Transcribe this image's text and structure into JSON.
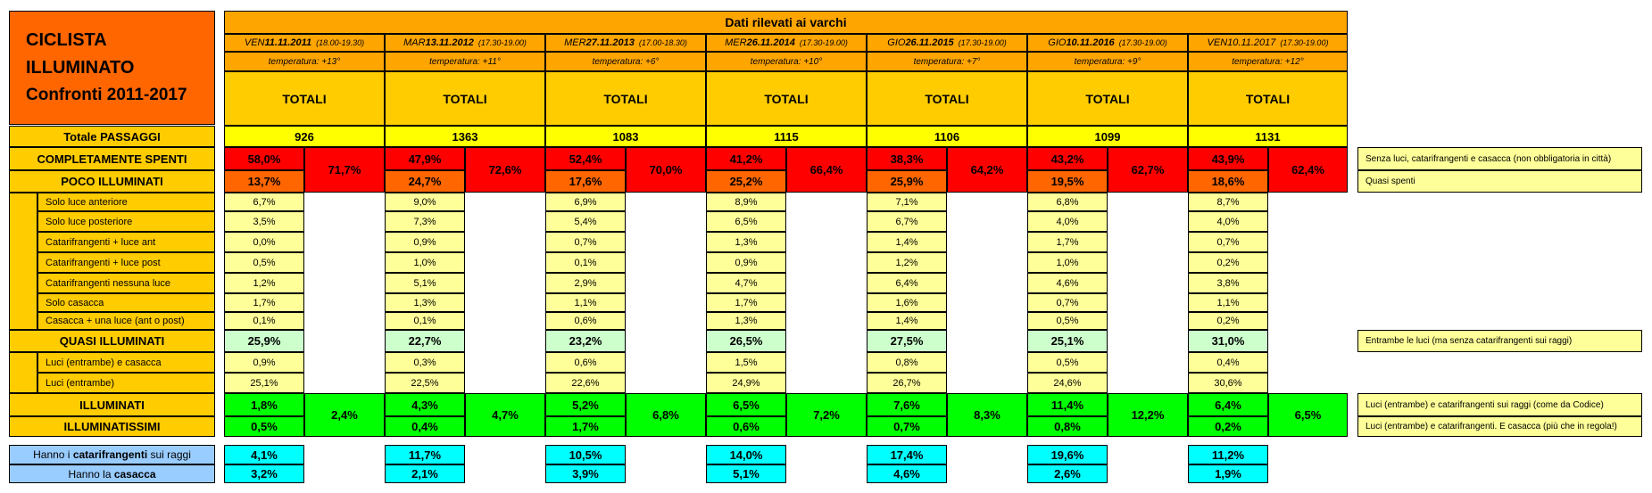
{
  "title": {
    "line1": "CICLISTA",
    "line2": "ILLUMINATO",
    "line3": "Confronti 2011-2017"
  },
  "header": {
    "banner": "Dati rilevati ai varchi",
    "totali_label": "TOTALI"
  },
  "dates": [
    {
      "day": "VEN",
      "date": "11.11.2011",
      "bold": true,
      "time": "(18.00-19.30)",
      "temp": "temperatura: +13°"
    },
    {
      "day": "MAR",
      "date": "13.11.2012",
      "bold": true,
      "time": "(17.30-19.00)",
      "temp": "temperatura: +11°"
    },
    {
      "day": "MER",
      "date": "27.11.2013",
      "bold": true,
      "time": "(17.00-18.30)",
      "temp": "temperatura: +6°"
    },
    {
      "day": "MER",
      "date": "26.11.2014",
      "bold": true,
      "time": "(17.30-19.00)",
      "temp": "temperatura: +10°"
    },
    {
      "day": "GIO",
      "date": "26.11.2015",
      "bold": true,
      "time": "(17.30-19.00)",
      "temp": "temperatura: +7°"
    },
    {
      "day": "GIO",
      "date": "10.11.2016",
      "bold": true,
      "time": "(17.30-19.00)",
      "temp": "temperatura: +9°"
    },
    {
      "day": "VEN",
      "date": "10.11.2017",
      "bold": false,
      "time": "(17.30-19.00)",
      "temp": "temperatura: +12°"
    }
  ],
  "labels": {
    "totale_passaggi": "Totale PASSAGGI",
    "completamente_spenti": "COMPLETAMENTE SPENTI",
    "poco_illuminati": "POCO ILLUMINATI",
    "quasi_illuminati": "QUASI ILLUMINATI",
    "illuminati": "ILLUMINATI",
    "illuminatissimi": "ILLUMINATISSIMI",
    "catarifrangenti_prefix": "Hanno i ",
    "catarifrangenti_bold": "catarifrangenti",
    "catarifrangenti_suffix": " sui raggi",
    "casacca_prefix": "Hanno la ",
    "casacca_bold": "casacca"
  },
  "poco_sub_labels": [
    "Solo luce anteriore",
    "Solo luce posteriore",
    "Catarifrangenti + luce ant",
    "Catarifrangenti + luce post",
    "Catarifrangenti nessuna luce",
    "Solo casacca",
    "Casacca + una luce (ant o post)"
  ],
  "quasi_sub_labels": [
    "Luci (entrambe) e casacca",
    "Luci (entrambe)"
  ],
  "notes": {
    "spenti": "Senza luci, catarifrangenti e casacca (non obbligatoria in città)",
    "poco": "Quasi spenti",
    "quasi": "Entrambe le luci (ma senza catarifrangenti sui raggi)",
    "illuminati": "Luci (entrambe) e catarifrangenti sui raggi (come da Codice)",
    "illuminatissimi": "Luci (entrambe) e catarifrangenti. E casacca (più che in regola!)"
  },
  "colors": {
    "orange": "#ffa500",
    "title_orange": "#ff6600",
    "yellow": "#ffcc00",
    "light_yellow": "#ffff99",
    "bright_yellow": "#ffff00",
    "red": "#ff0000",
    "dark_orange": "#ff6600",
    "light_green": "#ccffcc",
    "green": "#00ff00",
    "cyan": "#00ffff",
    "light_blue": "#99ccff"
  },
  "years": [
    {
      "totale": "926",
      "spenti": "58,0%",
      "poco": "13,7%",
      "spenti_poco": "71,7%",
      "poco_sub": [
        "6,7%",
        "3,5%",
        "0,0%",
        "0,5%",
        "1,2%",
        "1,7%",
        "0,1%"
      ],
      "quasi": "25,9%",
      "quasi_sub": [
        "0,9%",
        "25,1%"
      ],
      "illuminati": "1,8%",
      "illuminatissimi": "0,5%",
      "ill_sum": "2,4%",
      "catarifrangenti": "4,1%",
      "casacca": "3,2%"
    },
    {
      "totale": "1363",
      "spenti": "47,9%",
      "poco": "24,7%",
      "spenti_poco": "72,6%",
      "poco_sub": [
        "9,0%",
        "7,3%",
        "0,9%",
        "1,0%",
        "5,1%",
        "1,3%",
        "0,1%"
      ],
      "quasi": "22,7%",
      "quasi_sub": [
        "0,3%",
        "22,5%"
      ],
      "illuminati": "4,3%",
      "illuminatissimi": "0,4%",
      "ill_sum": "4,7%",
      "catarifrangenti": "11,7%",
      "casacca": "2,1%"
    },
    {
      "totale": "1083",
      "spenti": "52,4%",
      "poco": "17,6%",
      "spenti_poco": "70,0%",
      "poco_sub": [
        "6,9%",
        "5,4%",
        "0,7%",
        "0,1%",
        "2,9%",
        "1,1%",
        "0,6%"
      ],
      "quasi": "23,2%",
      "quasi_sub": [
        "0,6%",
        "22,6%"
      ],
      "illuminati": "5,2%",
      "illuminatissimi": "1,7%",
      "ill_sum": "6,8%",
      "catarifrangenti": "10,5%",
      "casacca": "3,9%"
    },
    {
      "totale": "1115",
      "spenti": "41,2%",
      "poco": "25,2%",
      "spenti_poco": "66,4%",
      "poco_sub": [
        "8,9%",
        "6,5%",
        "1,3%",
        "0,9%",
        "4,7%",
        "1,7%",
        "1,3%"
      ],
      "quasi": "26,5%",
      "quasi_sub": [
        "1,5%",
        "24,9%"
      ],
      "illuminati": "6,5%",
      "illuminatissimi": "0,6%",
      "ill_sum": "7,2%",
      "catarifrangenti": "14,0%",
      "casacca": "5,1%"
    },
    {
      "totale": "1106",
      "spenti": "38,3%",
      "poco": "25,9%",
      "spenti_poco": "64,2%",
      "poco_sub": [
        "7,1%",
        "6,7%",
        "1,4%",
        "1,2%",
        "6,4%",
        "1,6%",
        "1,4%"
      ],
      "quasi": "27,5%",
      "quasi_sub": [
        "0,8%",
        "26,7%"
      ],
      "illuminati": "7,6%",
      "illuminatissimi": "0,7%",
      "ill_sum": "8,3%",
      "catarifrangenti": "17,4%",
      "casacca": "4,6%"
    },
    {
      "totale": "1099",
      "spenti": "43,2%",
      "poco": "19,5%",
      "spenti_poco": "62,7%",
      "poco_sub": [
        "6,8%",
        "4,0%",
        "1,7%",
        "1,0%",
        "4,6%",
        "0,7%",
        "0,5%"
      ],
      "quasi": "25,1%",
      "quasi_sub": [
        "0,5%",
        "24,6%"
      ],
      "illuminati": "11,4%",
      "illuminatissimi": "0,8%",
      "ill_sum": "12,2%",
      "catarifrangenti": "19,6%",
      "casacca": "2,6%"
    },
    {
      "totale": "1131",
      "spenti": "43,9%",
      "poco": "18,6%",
      "spenti_poco": "62,4%",
      "poco_sub": [
        "8,7%",
        "4,0%",
        "0,7%",
        "0,2%",
        "3,8%",
        "1,1%",
        "0,2%"
      ],
      "quasi": "31,0%",
      "quasi_sub": [
        "0,4%",
        "30,6%"
      ],
      "illuminati": "6,4%",
      "illuminatissimi": "0,2%",
      "ill_sum": "6,5%",
      "catarifrangenti": "11,2%",
      "casacca": "1,9%"
    }
  ]
}
